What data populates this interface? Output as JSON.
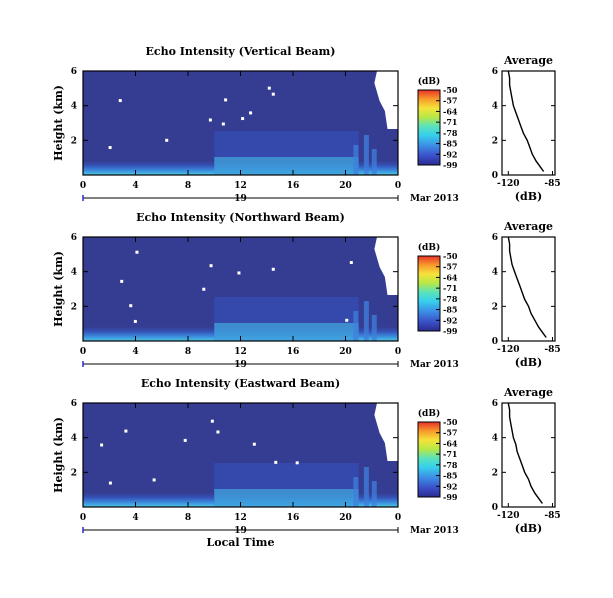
{
  "chart_data": [
    {
      "type": "heatmap",
      "title": "Echo Intensity (Vertical Beam)",
      "ylabel": "Height (km)",
      "xlabel": "",
      "x_ticks": [
        "0",
        "4",
        "8",
        "12",
        "16",
        "20",
        "0"
      ],
      "y_ticks": [
        "6",
        "4",
        "2"
      ],
      "xlim": [
        0,
        24
      ],
      "ylim": [
        0,
        6
      ],
      "date_day": "19",
      "date_month": "Mar 2013",
      "colorbar": {
        "unit": "(dB)",
        "ticks": [
          "-50",
          "-57",
          "-64",
          "-71",
          "-78",
          "-85",
          "-92",
          "-99"
        ],
        "range": [
          -99,
          -50
        ]
      },
      "profile": {
        "title": "Average",
        "xlabel": "(dB)",
        "x_ticks": [
          "-120",
          "-85"
        ],
        "y_ticks": [
          "6",
          "4",
          "2",
          "0"
        ],
        "xlim": [
          -125,
          -83
        ],
        "ylim": [
          0,
          6
        ],
        "points": [
          [
            -92,
            0.2
          ],
          [
            -95,
            0.5
          ],
          [
            -98,
            0.8
          ],
          [
            -101,
            1.2
          ],
          [
            -103,
            1.6
          ],
          [
            -105,
            2.0
          ],
          [
            -108,
            2.4
          ],
          [
            -110,
            2.8
          ],
          [
            -112,
            3.2
          ],
          [
            -114,
            3.6
          ],
          [
            -116,
            4.0
          ],
          [
            -117,
            4.4
          ],
          [
            -118,
            4.8
          ],
          [
            -119,
            5.2
          ],
          [
            -119,
            5.6
          ],
          [
            -120,
            6.0
          ]
        ]
      }
    },
    {
      "type": "heatmap",
      "title": "Echo Intensity (Northward Beam)",
      "ylabel": "Height (km)",
      "xlabel": "",
      "x_ticks": [
        "0",
        "4",
        "8",
        "12",
        "16",
        "20",
        "0"
      ],
      "y_ticks": [
        "6",
        "4",
        "2"
      ],
      "xlim": [
        0,
        24
      ],
      "ylim": [
        0,
        6
      ],
      "date_day": "19",
      "date_month": "Mar 2013",
      "colorbar": {
        "unit": "(dB)",
        "ticks": [
          "-50",
          "-57",
          "-64",
          "-71",
          "-78",
          "-85",
          "-92",
          "-99"
        ],
        "range": [
          -99,
          -50
        ]
      },
      "profile": {
        "title": "Average",
        "xlabel": "(dB)",
        "x_ticks": [
          "-120",
          "-85"
        ],
        "y_ticks": [
          "6",
          "4",
          "2",
          "0"
        ],
        "xlim": [
          -125,
          -83
        ],
        "ylim": [
          0,
          6
        ],
        "points": [
          [
            -90,
            0.2
          ],
          [
            -93,
            0.5
          ],
          [
            -96,
            0.8
          ],
          [
            -99,
            1.2
          ],
          [
            -102,
            1.6
          ],
          [
            -104,
            2.0
          ],
          [
            -107,
            2.4
          ],
          [
            -109,
            2.8
          ],
          [
            -111,
            3.2
          ],
          [
            -113,
            3.6
          ],
          [
            -115,
            4.0
          ],
          [
            -117,
            4.4
          ],
          [
            -118,
            4.8
          ],
          [
            -119,
            5.2
          ],
          [
            -119,
            5.6
          ],
          [
            -120,
            6.0
          ]
        ]
      }
    },
    {
      "type": "heatmap",
      "title": "Echo Intensity (Eastward Beam)",
      "ylabel": "Height (km)",
      "xlabel": "Local Time",
      "x_ticks": [
        "0",
        "4",
        "8",
        "12",
        "16",
        "20",
        "0"
      ],
      "y_ticks": [
        "6",
        "4",
        "2"
      ],
      "xlim": [
        0,
        24
      ],
      "ylim": [
        0,
        6
      ],
      "date_day": "19",
      "date_month": "Mar 2013",
      "colorbar": {
        "unit": "(dB)",
        "ticks": [
          "-50",
          "-57",
          "-64",
          "-71",
          "-78",
          "-85",
          "-92",
          "-99"
        ],
        "range": [
          -99,
          -50
        ]
      },
      "profile": {
        "title": "Average",
        "xlabel": "(dB)",
        "x_ticks": [
          "-120",
          "-85"
        ],
        "y_ticks": [
          "6",
          "4",
          "2",
          "0"
        ],
        "xlim": [
          -125,
          -83
        ],
        "ylim": [
          0,
          6
        ],
        "points": [
          [
            -93,
            0.2
          ],
          [
            -96,
            0.5
          ],
          [
            -99,
            0.8
          ],
          [
            -102,
            1.2
          ],
          [
            -104,
            1.6
          ],
          [
            -107,
            2.0
          ],
          [
            -109,
            2.4
          ],
          [
            -111,
            2.8
          ],
          [
            -113,
            3.2
          ],
          [
            -114,
            3.6
          ],
          [
            -116,
            4.0
          ],
          [
            -117,
            4.4
          ],
          [
            -118,
            4.8
          ],
          [
            -119,
            5.2
          ],
          [
            -119,
            5.6
          ],
          [
            -120,
            6.0
          ]
        ]
      }
    }
  ]
}
